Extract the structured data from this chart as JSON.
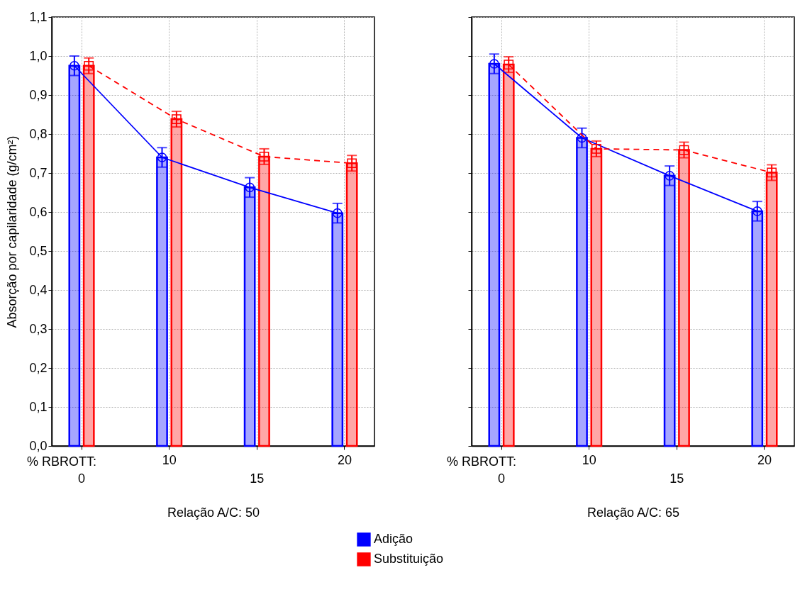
{
  "chart_data": [
    {
      "type": "bar",
      "xlabel": "Relação A/C: 50",
      "ylabel": "Absorção por capilaridade (g/cm²)",
      "annotations": [
        "% RBROTT:"
      ],
      "categories": [
        "0",
        "10",
        "15",
        "20"
      ],
      "ylim": [
        0,
        1.1
      ],
      "yticks": [
        {
          "value": 0,
          "label": "0,0"
        },
        {
          "value": 0.1,
          "label": "0,1"
        },
        {
          "value": 0.2,
          "label": "0,2"
        },
        {
          "value": 0.3,
          "label": "0,3"
        },
        {
          "value": 0.4,
          "label": "0,4"
        },
        {
          "value": 0.5,
          "label": "0,5"
        },
        {
          "value": 0.6,
          "label": "0,6"
        },
        {
          "value": 0.7,
          "label": "0,7"
        },
        {
          "value": 0.8,
          "label": "0,8"
        },
        {
          "value": 0.9,
          "label": "0,9"
        },
        {
          "value": 1,
          "label": "1,0"
        },
        {
          "value": 1.1,
          "label": "1,1"
        }
      ],
      "grid": true,
      "legend": "bottom",
      "series": [
        {
          "name": "Adição",
          "color": "#0000ff",
          "values": [
            0.975,
            0.74,
            0.663,
            0.597
          ],
          "errors": [
            0.025,
            0.025,
            0.025,
            0.025
          ]
        },
        {
          "name": "Substituição",
          "color": "#ff0000",
          "values": [
            0.975,
            0.838,
            0.742,
            0.725
          ],
          "errors": [
            0.02,
            0.02,
            0.02,
            0.02
          ]
        },
        {
          "type": "line",
          "color": "#0000ff",
          "values": [
            0.975,
            0.74,
            0.663,
            0.597
          ],
          "marker": "circle",
          "line_style": "solid"
        },
        {
          "type": "line",
          "color": "#ff0000",
          "values": [
            0.975,
            0.838,
            0.742,
            0.725
          ],
          "marker": "square",
          "line_style": "dashed"
        }
      ]
    },
    {
      "type": "bar",
      "xlabel": "Relação A/C: 65",
      "annotations": [
        "% RBROTT:"
      ],
      "categories": [
        "0",
        "10",
        "15",
        "20"
      ],
      "ylim": [
        0,
        1.1
      ],
      "yticks": [
        {
          "value": 0,
          "label": null
        },
        {
          "value": 0.1,
          "label": null
        },
        {
          "value": 0.2,
          "label": null
        },
        {
          "value": 0.3,
          "label": null
        },
        {
          "value": 0.4,
          "label": null
        },
        {
          "value": 0.5,
          "label": null
        },
        {
          "value": 0.6,
          "label": null
        },
        {
          "value": 0.7,
          "label": null
        },
        {
          "value": 0.8,
          "label": null
        },
        {
          "value": 0.9,
          "label": null
        },
        {
          "value": 1,
          "label": null
        },
        {
          "value": 1.1,
          "label": null
        }
      ],
      "grid": true,
      "tick_labels": "x",
      "legend": "bottom",
      "series": [
        {
          "name": "Adição",
          "color": "#0000ff",
          "values": [
            0.98,
            0.79,
            0.693,
            0.602
          ],
          "errors": [
            0.025,
            0.025,
            0.025,
            0.025
          ]
        },
        {
          "name": "Substituição",
          "color": "#ff0000",
          "values": [
            0.978,
            0.762,
            0.759,
            0.701
          ],
          "errors": [
            0.02,
            0.02,
            0.02,
            0.02
          ]
        },
        {
          "type": "line",
          "color": "#0000ff",
          "values": [
            0.98,
            0.79,
            0.693,
            0.602
          ],
          "marker": "circle",
          "line_style": "solid"
        },
        {
          "type": "line",
          "color": "#ff0000",
          "values": [
            0.978,
            0.762,
            0.759,
            0.701
          ],
          "marker": "square",
          "line_style": "dashed"
        }
      ]
    }
  ]
}
